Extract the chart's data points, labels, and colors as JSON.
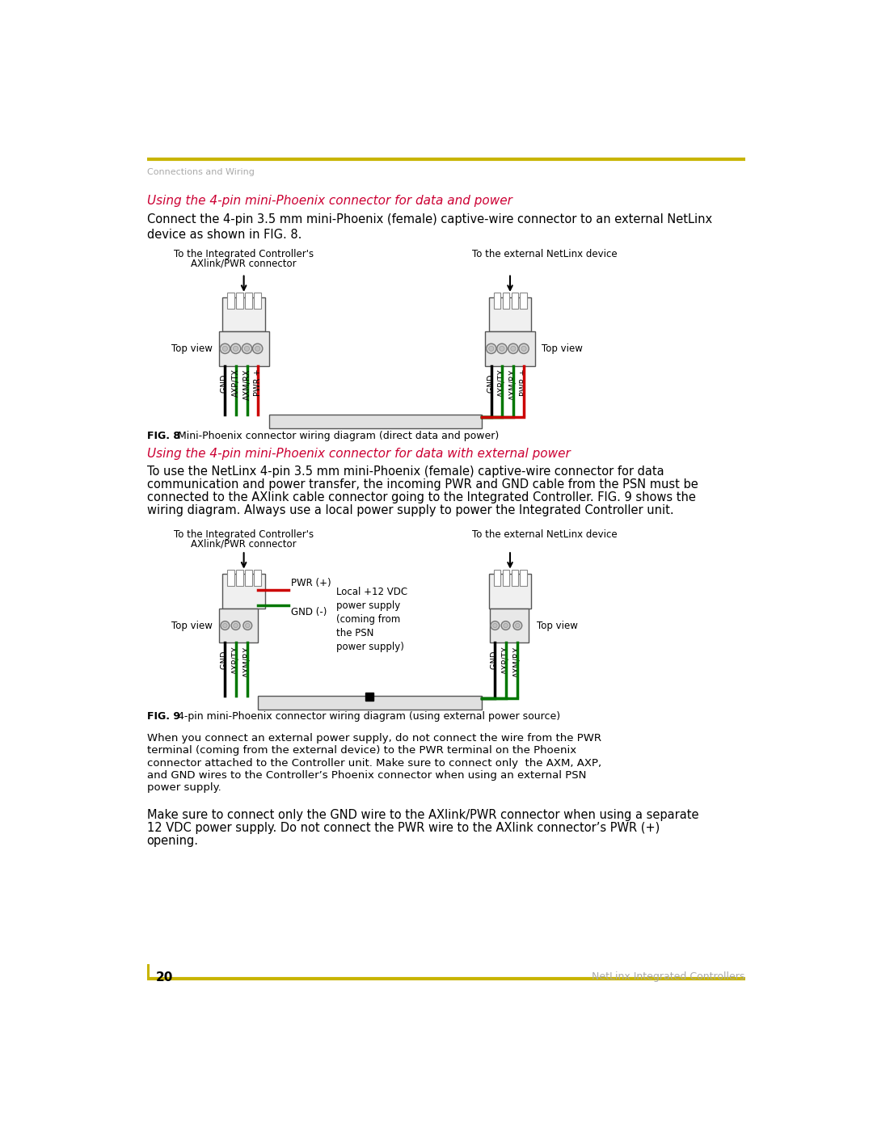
{
  "page_bg": "#ffffff",
  "top_line_color": "#c8b400",
  "header_text": "Connections and Wiring",
  "header_color": "#aaaaaa",
  "footer_page": "20",
  "footer_right": "NetLinx Integrated Controllers",
  "section1_title": "Using the 4-pin mini-Phoenix connector for data and power",
  "section1_title_color": "#cc0033",
  "section1_body1": "Connect the 4-pin 3.5 mm mini-Phoenix (female) captive-wire connector to an external NetLinx",
  "section1_body2": "device as shown in FIG. 8.",
  "fig8_bold": "FIG. 8",
  "fig8_rest": "  Mini-Phoenix connector wiring diagram (direct data and power)",
  "section2_title": "Using the 4-pin mini-Phoenix connector for data with external power",
  "section2_title_color": "#cc0033",
  "section2_body": "To use the NetLinx 4-pin 3.5 mm mini-Phoenix (female) captive-wire connector for data\ncommunication and power transfer, the incoming PWR and GND cable from the PSN must be\nconnected to the AXlink cable connector going to the Integrated Controller. FIG. 9 shows the\nwiring diagram. Always use a local power supply to power the Integrated Controller unit.",
  "fig9_bold": "FIG. 9",
  "fig9_rest": "  4-pin mini-Phoenix connector wiring diagram (using external power source)",
  "warning1": "When you connect an external power supply, do not connect the wire from the PWR\nterminal (coming from the external device) to the PWR terminal on the Phoenix\nconnector attached to the Controller unit. Make sure to connect only  the AXM, AXP,\nand GND wires to the Controller’s Phoenix connector when using an external PSN\npower supply.",
  "warning2": "Make sure to connect only the GND wire to the AXlink/PWR connector when using a separate\n12 VDC power supply. Do not connect the PWR wire to the AXlink connector’s PWR (+)\nopening.",
  "color_black": "#000000",
  "color_green": "#007700",
  "color_red": "#cc0000",
  "color_gray": "#888888",
  "color_lgray": "#cccccc"
}
